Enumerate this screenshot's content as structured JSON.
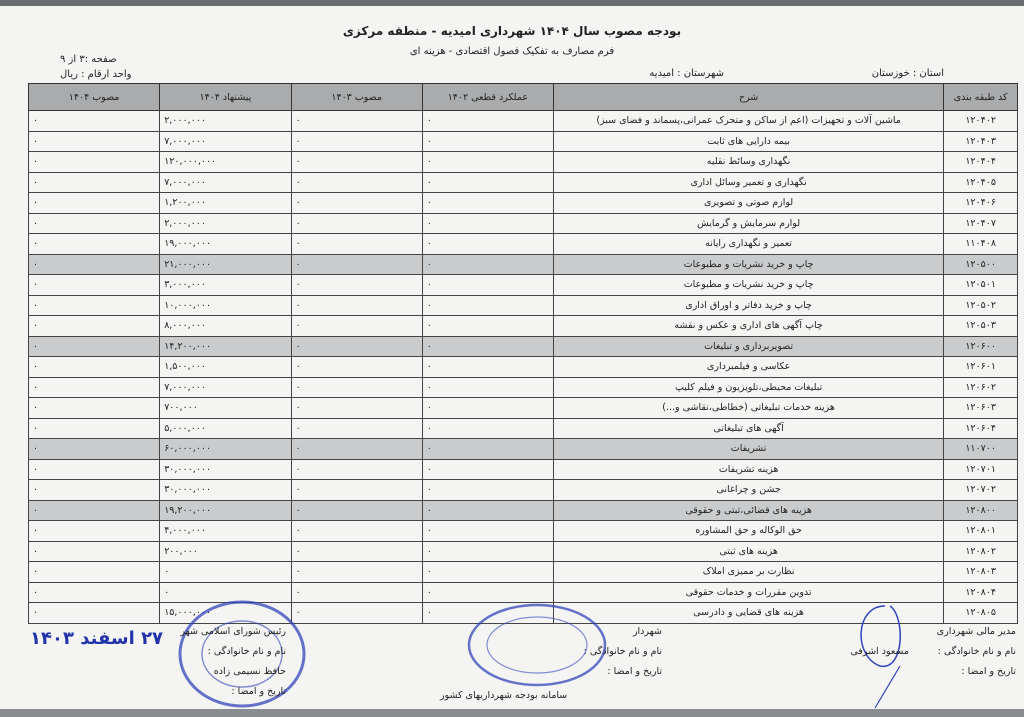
{
  "header": {
    "title": "بودجه مصوب سال ۱۴۰۴ شهرداری امیدیه - منطقه مرکزی",
    "subtitle": "فرم مصارف به تفکیک فصول اقتصادی - هزینه ای",
    "page": "صفحه :۳ از ۹",
    "unit": "واحد ارقام : ریال",
    "province": "استان : خوزستان",
    "county": "شهرستان : امیدیه"
  },
  "table": {
    "columns": [
      "کد طبقه بندی",
      "شرح",
      "عملکرد قطعی ۱۴۰۲",
      "مصوب ۱۴۰۳",
      "پیشنهاد ۱۴۰۴",
      "مصوب ۱۴۰۴"
    ],
    "rows": [
      {
        "code": "۱۲۰۴۰۲",
        "desc": "ماشین آلات و تجهیزات (اعم از ساکن و متحرک عمرانی،پسماند و فضای سبز)",
        "actual1402": "۰",
        "approved1403": "۰",
        "proposed1404": "۲,۰۰۰,۰۰۰",
        "approved1404": "۰",
        "group": false
      },
      {
        "code": "۱۲۰۴۰۳",
        "desc": "بیمه دارایی های ثابت",
        "actual1402": "۰",
        "approved1403": "۰",
        "proposed1404": "۷,۰۰۰,۰۰۰",
        "approved1404": "۰",
        "group": false
      },
      {
        "code": "۱۲۰۴۰۴",
        "desc": "نگهداری وسائط نقلیه",
        "actual1402": "۰",
        "approved1403": "۰",
        "proposed1404": "۱۲۰,۰۰۰,۰۰۰",
        "approved1404": "۰",
        "group": false
      },
      {
        "code": "۱۲۰۴۰۵",
        "desc": "نگهداری و تعمیر وسائل اداری",
        "actual1402": "۰",
        "approved1403": "۰",
        "proposed1404": "۷,۰۰۰,۰۰۰",
        "approved1404": "۰",
        "group": false
      },
      {
        "code": "۱۲۰۴۰۶",
        "desc": "لوازم صوتی و تصویری",
        "actual1402": "۰",
        "approved1403": "۰",
        "proposed1404": "۱,۲۰۰,۰۰۰",
        "approved1404": "۰",
        "group": false
      },
      {
        "code": "۱۲۰۴۰۷",
        "desc": "لوارم سرمایش و گرمایش",
        "actual1402": "۰",
        "approved1403": "۰",
        "proposed1404": "۲,۰۰۰,۰۰۰",
        "approved1404": "۰",
        "group": false
      },
      {
        "code": "۱۱۰۴۰۸",
        "desc": "تعمیر و نگهداری رایانه",
        "actual1402": "۰",
        "approved1403": "۰",
        "proposed1404": "۱۹,۰۰۰,۰۰۰",
        "approved1404": "۰",
        "group": false
      },
      {
        "code": "۱۲۰۵۰۰",
        "desc": "چاپ و خرید نشریات و مطبوعات",
        "actual1402": "۰",
        "approved1403": "۰",
        "proposed1404": "۲۱,۰۰۰,۰۰۰",
        "approved1404": "۰",
        "group": true
      },
      {
        "code": "۱۲۰۵۰۱",
        "desc": "چاپ و خرید نشریات و مطبوعات",
        "actual1402": "۰",
        "approved1403": "۰",
        "proposed1404": "۳,۰۰۰,۰۰۰",
        "approved1404": "۰",
        "group": false
      },
      {
        "code": "۱۲۰۵۰۲",
        "desc": "چاپ و خرید دفاتر و اوراق اداری",
        "actual1402": "۰",
        "approved1403": "۰",
        "proposed1404": "۱۰,۰۰۰,۰۰۰",
        "approved1404": "۰",
        "group": false
      },
      {
        "code": "۱۲۰۵۰۳",
        "desc": "چاپ آگهی های اداری و عکس و نقشه",
        "actual1402": "۰",
        "approved1403": "۰",
        "proposed1404": "۸,۰۰۰,۰۰۰",
        "approved1404": "۰",
        "group": false
      },
      {
        "code": "۱۲۰۶۰۰",
        "desc": "تصویربرداری و تبلیغات",
        "actual1402": "۰",
        "approved1403": "۰",
        "proposed1404": "۱۴,۲۰۰,۰۰۰",
        "approved1404": "۰",
        "group": true
      },
      {
        "code": "۱۲۰۶۰۱",
        "desc": "عکاسی و فیلمبرداری",
        "actual1402": "۰",
        "approved1403": "۰",
        "proposed1404": "۱,۵۰۰,۰۰۰",
        "approved1404": "۰",
        "group": false
      },
      {
        "code": "۱۲۰۶۰۲",
        "desc": "تبلیغات محیطی،تلویزیون و فیلم کلیپ",
        "actual1402": "۰",
        "approved1403": "۰",
        "proposed1404": "۷,۰۰۰,۰۰۰",
        "approved1404": "۰",
        "group": false
      },
      {
        "code": "۱۲۰۶۰۳",
        "desc": "هزینه خدمات تبلیغاتی (خطاطی،نقاشی و...)",
        "actual1402": "۰",
        "approved1403": "۰",
        "proposed1404": "۷۰۰,۰۰۰",
        "approved1404": "۰",
        "group": false
      },
      {
        "code": "۱۲۰۶۰۴",
        "desc": "آگهی های تبلیغاتی",
        "actual1402": "۰",
        "approved1403": "۰",
        "proposed1404": "۵,۰۰۰,۰۰۰",
        "approved1404": "۰",
        "group": false
      },
      {
        "code": "۱۱۰۷۰۰",
        "desc": "تشریفات",
        "actual1402": "۰",
        "approved1403": "۰",
        "proposed1404": "۶۰,۰۰۰,۰۰۰",
        "approved1404": "۰",
        "group": true
      },
      {
        "code": "۱۲۰۷۰۱",
        "desc": "هزینه تشریفات",
        "actual1402": "۰",
        "approved1403": "۰",
        "proposed1404": "۳۰,۰۰۰,۰۰۰",
        "approved1404": "۰",
        "group": false
      },
      {
        "code": "۱۲۰۷۰۲",
        "desc": "جشن و چراغانی",
        "actual1402": "۰",
        "approved1403": "۰",
        "proposed1404": "۳۰,۰۰۰,۰۰۰",
        "approved1404": "۰",
        "group": false
      },
      {
        "code": "۱۲۰۸۰۰",
        "desc": "هزینه های قضائی،ثبتی و حقوقی",
        "actual1402": "۰",
        "approved1403": "۰",
        "proposed1404": "۱۹,۲۰۰,۰۰۰",
        "approved1404": "۰",
        "group": true
      },
      {
        "code": "۱۲۰۸۰۱",
        "desc": "حق الوکاله و حق المشاوره",
        "actual1402": "۰",
        "approved1403": "۰",
        "proposed1404": "۴,۰۰۰,۰۰۰",
        "approved1404": "۰",
        "group": false
      },
      {
        "code": "۱۲۰۸۰۲",
        "desc": "هزینه های ثبتی",
        "actual1402": "۰",
        "approved1403": "۰",
        "proposed1404": "۲۰۰,۰۰۰",
        "approved1404": "۰",
        "group": false
      },
      {
        "code": "۱۲۰۸۰۳",
        "desc": "نظارت بر ممیزی املاک",
        "actual1402": "۰",
        "approved1403": "۰",
        "proposed1404": "۰",
        "approved1404": "۰",
        "group": false
      },
      {
        "code": "۱۲۰۸۰۴",
        "desc": "تدوین مقررات و خدمات حقوقی",
        "actual1402": "۰",
        "approved1403": "۰",
        "proposed1404": "۰",
        "approved1404": "۰",
        "group": false
      },
      {
        "code": "۱۲۰۸۰۵",
        "desc": "هزینه های قضایی و دادرسی",
        "actual1402": "۰",
        "approved1403": "۰",
        "proposed1404": "۱۵,۰۰۰,۰۰۰",
        "approved1404": "۰",
        "group": false
      }
    ]
  },
  "footer": {
    "finance_manager_title": "مدیر مالی شهرداری",
    "name_label": "نام و نام خانوادگی :",
    "finance_manager_name": "مسعود اشرفی",
    "date_sign_label": "تاریخ و امضا :",
    "mayor_title": "شهردار",
    "mayor_name_label": "نام و نام خانوادگی :",
    "mayor_date_label": "تاریخ و امضا :",
    "council_title": "رئیس شورای اسلامی شهر",
    "council_name_label": "نام و نام خانوادگی :",
    "council_name": "حافظ نسیمی زاده",
    "council_date_label": "تاریخ و امضا :",
    "system_name": "سامانه بودجه شهرداریهای کشور",
    "handwritten_date": "۲۷ اسفند ۱۴۰۳",
    "stamp_ministry": "جمهوری اسلامی ایران - وزارت کشور - شهرداری امیدیه",
    "stamp_council": "شورای اسلامی شهر امیدیه - استان خوزستان",
    "ink_color": "#2233aa"
  }
}
